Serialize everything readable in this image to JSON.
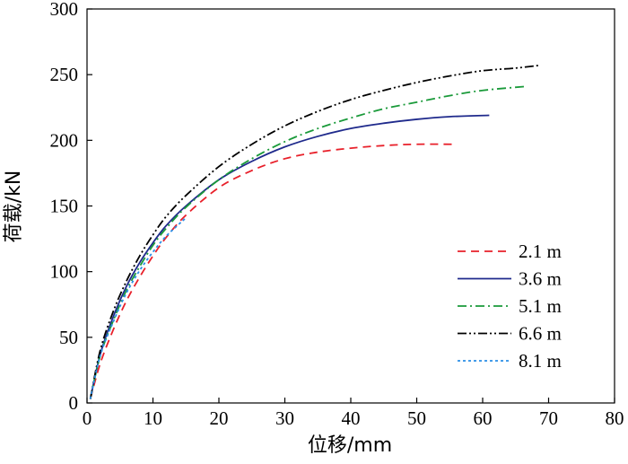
{
  "chart_data": {
    "type": "line",
    "title": "",
    "xlabel": "位移/mm",
    "ylabel": "荷载/kN",
    "xlim": [
      0,
      80
    ],
    "ylim": [
      0,
      300
    ],
    "xticks": [
      0,
      10,
      20,
      30,
      40,
      50,
      60,
      70,
      80
    ],
    "yticks": [
      0,
      50,
      100,
      150,
      200,
      250,
      300
    ],
    "grid": false,
    "legend_position": "right",
    "series": [
      {
        "name": "2.1 m",
        "color": "#e8202a",
        "dash": "dashed",
        "x": [
          0.5,
          2,
          4,
          6,
          8,
          10,
          12,
          15,
          20,
          25,
          30,
          35,
          40,
          45,
          50,
          55.5
        ],
        "y": [
          3,
          30,
          56,
          78,
          96,
          112,
          126,
          143,
          164,
          177,
          186,
          191,
          194,
          196,
          197,
          197
        ]
      },
      {
        "name": "3.6 m",
        "color": "#1f2a8c",
        "dash": "solid",
        "x": [
          0.5,
          2,
          4,
          6,
          8,
          10,
          12,
          15,
          20,
          25,
          30,
          35,
          40,
          45,
          50,
          55,
          61
        ],
        "y": [
          3,
          37,
          66,
          89,
          107,
          122,
          135,
          150,
          170,
          184,
          195,
          203,
          209,
          213,
          216,
          218,
          219
        ]
      },
      {
        "name": "5.1 m",
        "color": "#1a9a3a",
        "dash": "dashdot",
        "x": [
          0.5,
          2,
          4,
          6,
          8,
          10,
          12,
          15,
          20,
          25,
          30,
          35,
          40,
          45,
          50,
          55,
          60,
          66.5
        ],
        "y": [
          3,
          36,
          63,
          86,
          104,
          120,
          133,
          149,
          170,
          186,
          199,
          209,
          217,
          224,
          229,
          234,
          238,
          241
        ]
      },
      {
        "name": "6.6 m",
        "color": "#000000",
        "dash": "dashdotdot",
        "x": [
          0.5,
          2,
          4,
          6,
          8,
          10,
          12,
          15,
          20,
          25,
          30,
          35,
          40,
          45,
          50,
          55,
          60,
          65,
          68.5
        ],
        "y": [
          3,
          40,
          70,
          93,
          112,
          128,
          142,
          158,
          180,
          197,
          211,
          222,
          231,
          238,
          244,
          249,
          253,
          255,
          257
        ]
      },
      {
        "name": "8.1 m",
        "color": "#2a8ee6",
        "dash": "dotted",
        "x": [
          0.5,
          2,
          4,
          6,
          8,
          10,
          12,
          15
        ],
        "y": [
          3,
          36,
          62,
          84,
          101,
          115,
          127,
          141
        ]
      }
    ]
  }
}
